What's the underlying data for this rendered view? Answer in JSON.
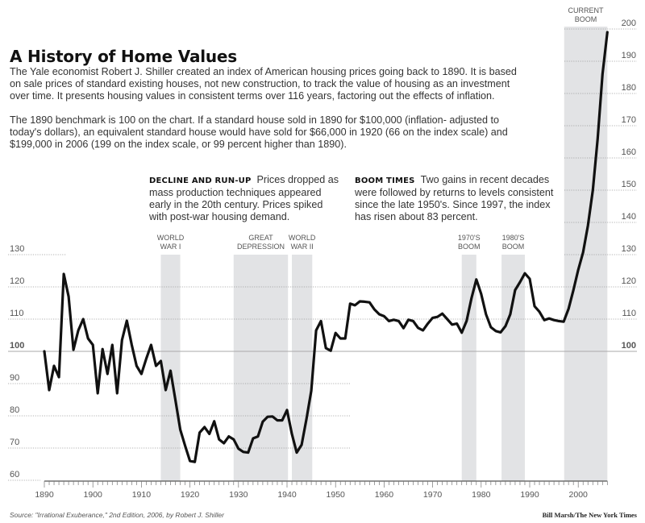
{
  "header": {
    "title": "A History of Home Values",
    "intro_lines": [
      "The Yale economist Robert J. Shiller created an index of American housing prices going back to 1890. It is based",
      "on sale prices of standard existing houses, not new construction, to track the value of housing as an investment",
      "over time. It presents housing values in consistent terms over 116 years, factoring out the effects of inflation."
    ],
    "benchmark_lines": [
      "The 1890 benchmark is 100 on the chart. If a standard house sold in 1890 for $100,000 (inflation- adjusted to",
      "today's dollars), an equivalent standard house would have sold for $66,000 in 1920 (66 on the index scale) and",
      "$199,000 in 2006 (199 on the index scale, or 99 percent higher than 1890)."
    ]
  },
  "annotations": {
    "decline": {
      "heading": "DECLINE AND RUN-UP",
      "lines": [
        "Prices dropped as",
        "mass production techniques appeared",
        "early in the 20th century. Prices spiked",
        "with post-war housing demand."
      ]
    },
    "boom": {
      "heading": "BOOM TIMES",
      "lines": [
        "Two gains in recent decades",
        "were followed by returns to levels consistent",
        "since the late 1950's. Since 1997, the index",
        "has risen about 83 percent."
      ]
    }
  },
  "footer": {
    "source": "Source: \"Irrational Exuberance,\" 2nd Edition, 2006, by Robert J. Shiller",
    "credit": "Bill Marsh/The New York Times"
  },
  "colors": {
    "line": "#111111",
    "band": "#e2e3e5",
    "grid": "#999999",
    "baseline": "#aaaaaa"
  },
  "chart_data": {
    "type": "line",
    "title": "A History of Home Values",
    "xlabel": "",
    "ylabel": "",
    "xlim": [
      1890,
      2006
    ],
    "ylim": [
      60,
      200
    ],
    "x_ticks": [
      1890,
      1900,
      1910,
      1920,
      1930,
      1940,
      1950,
      1960,
      1970,
      1980,
      1990,
      2000
    ],
    "y_ticks_left": [
      60,
      70,
      80,
      90,
      100,
      110,
      120,
      130
    ],
    "y_ticks_right": [
      100,
      110,
      120,
      130,
      140,
      150,
      160,
      170,
      180,
      190,
      200
    ],
    "reference_line": 100,
    "grid": "dotted horizontal",
    "bands": [
      {
        "label": [
          "WORLD",
          "WAR I"
        ],
        "start": 1914,
        "end": 1918
      },
      {
        "label": [
          "GREAT",
          "DEPRESSION"
        ],
        "start": 1929,
        "end": 1940.2
      },
      {
        "label": [
          "WORLD",
          "WAR II"
        ],
        "start": 1941,
        "end": 1945.2
      },
      {
        "label": [
          "1970'S",
          "BOOM"
        ],
        "start": 1976,
        "end": 1979
      },
      {
        "label": [
          "1980'S",
          "BOOM"
        ],
        "start": 1984.2,
        "end": 1989
      },
      {
        "label": [
          "CURRENT",
          "BOOM"
        ],
        "start": 1997.1,
        "end": 2006
      }
    ],
    "x": [
      1890,
      1891,
      1892,
      1893,
      1894,
      1895,
      1896,
      1897,
      1898,
      1899,
      1900,
      1901,
      1902,
      1903,
      1904,
      1905,
      1906,
      1907,
      1908,
      1909,
      1910,
      1911,
      1912,
      1913,
      1914,
      1915,
      1916,
      1917,
      1918,
      1919,
      1920,
      1921,
      1922,
      1923,
      1924,
      1925,
      1926,
      1927,
      1928,
      1929,
      1930,
      1931,
      1932,
      1933,
      1934,
      1935,
      1936,
      1937,
      1938,
      1939,
      1940,
      1941,
      1942,
      1943,
      1944,
      1945,
      1946,
      1947,
      1948,
      1949,
      1950,
      1951,
      1952,
      1953,
      1954,
      1955,
      1956,
      1957,
      1958,
      1959,
      1960,
      1961,
      1962,
      1963,
      1964,
      1965,
      1966,
      1967,
      1968,
      1969,
      1970,
      1971,
      1972,
      1973,
      1974,
      1975,
      1976,
      1977,
      1978,
      1979,
      1980,
      1981,
      1982,
      1983,
      1984,
      1985,
      1986,
      1987,
      1988,
      1989,
      1990,
      1991,
      1992,
      1993,
      1994,
      1995,
      1996,
      1997,
      1998,
      1999,
      2000,
      2001,
      2002,
      2003,
      2004,
      2005,
      2006
    ],
    "values": [
      100,
      88,
      95.5,
      92,
      124,
      117,
      100.5,
      106.5,
      110,
      104,
      102,
      87,
      100.7,
      93,
      102,
      87,
      103.5,
      109.5,
      102,
      95.5,
      93,
      97.7,
      102,
      95.5,
      97,
      88,
      94,
      85,
      75.7,
      70.7,
      66,
      65.7,
      74.8,
      76.5,
      74.4,
      78.3,
      72.7,
      71.5,
      73.6,
      72.7,
      69.8,
      68.8,
      68.6,
      73,
      73.6,
      78.2,
      79.7,
      79.8,
      78.6,
      78.6,
      81.8,
      74.4,
      68.6,
      71,
      79,
      87.8,
      106.5,
      109.4,
      101,
      100.2,
      105.7,
      104,
      104,
      114.8,
      114.3,
      115.5,
      115.4,
      115.2,
      113,
      111.5,
      110.9,
      109.4,
      109.8,
      109.4,
      107.2,
      109.8,
      109.4,
      107.3,
      106.5,
      108.6,
      110.4,
      110.7,
      111.7,
      110,
      108.3,
      108.6,
      105.8,
      109.4,
      116.5,
      122.3,
      117.8,
      111.5,
      107.5,
      106.3,
      105.9,
      107.8,
      111.5,
      119,
      121.5,
      124.2,
      122.5,
      114,
      112.3,
      109.7,
      110.2,
      109.7,
      109.4,
      109.2,
      113.2,
      119,
      125.3,
      130.7,
      139,
      150,
      166,
      186,
      199
    ]
  }
}
